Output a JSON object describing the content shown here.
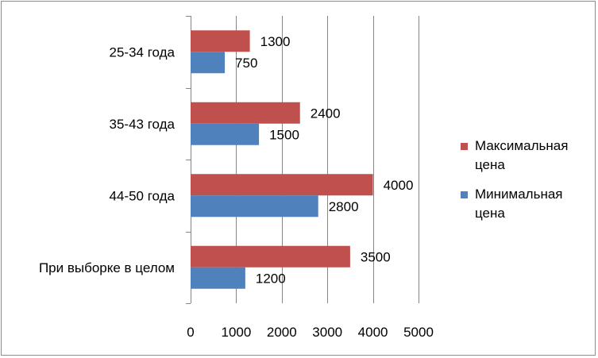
{
  "chart_data": {
    "type": "bar",
    "orientation": "horizontal",
    "categories": [
      "25-34 года",
      "35-43 года",
      "44-50 года",
      "При выборке в целом"
    ],
    "series": [
      {
        "name": "Максимальная цена",
        "values": [
          1300,
          2400,
          4000,
          3500
        ],
        "color": "#c0504d"
      },
      {
        "name": "Минимальная цена",
        "values": [
          750,
          1500,
          2800,
          1200
        ],
        "color": "#4f81bd"
      }
    ],
    "xlim": [
      0,
      5000
    ],
    "xticks": [
      0,
      1000,
      2000,
      3000,
      4000,
      5000
    ],
    "grid": true,
    "legend": "right",
    "data_labels": true
  }
}
